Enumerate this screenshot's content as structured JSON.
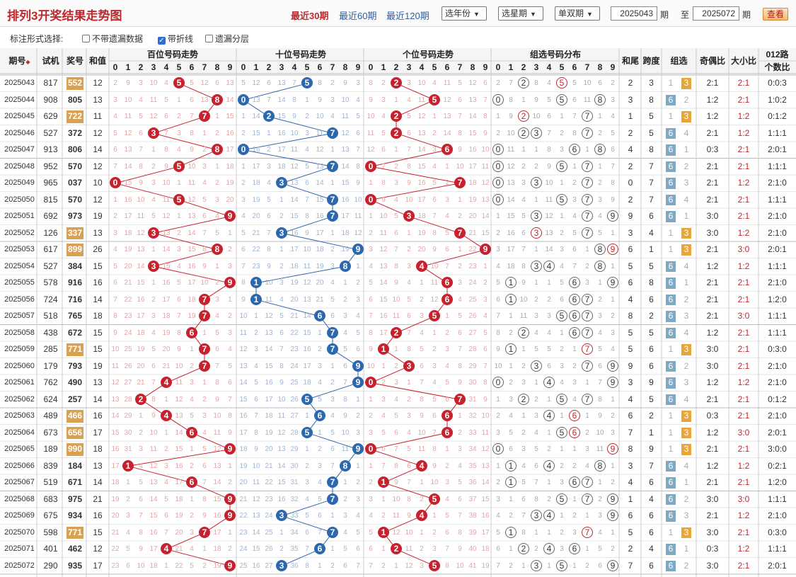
{
  "header": {
    "title": "排列3开奖结果走势图",
    "links": [
      "最近30期",
      "最近60期",
      "最近120期"
    ],
    "year_select": "选年份",
    "week_select": "选星期",
    "oddeven_select": "单双期",
    "start_issue": "2025043",
    "issue_word": "期",
    "to_word": "至",
    "end_issue": "2025072",
    "query": "查看"
  },
  "options": {
    "label": "标注形式选择:",
    "items": [
      {
        "label": "不带遗漏数据",
        "checked": false
      },
      {
        "label": "带折线",
        "checked": true
      },
      {
        "label": "遗漏分层",
        "checked": false
      }
    ]
  },
  "columns": {
    "issue": "期号",
    "sort_icon": "◆",
    "test": "试机",
    "prize": "奖号",
    "sum": "和值",
    "hundreds": "百位号码走势",
    "tens": "十位号码走势",
    "units": "个位号码走势",
    "group": "组选号码分布",
    "tail": "和尾",
    "span": "跨度",
    "gtype": "组选",
    "oe": "奇偶比",
    "bs": "大小比",
    "r012": "012路",
    "r012b": "个数比",
    "digits": [
      "0",
      "1",
      "2",
      "3",
      "4",
      "5",
      "6",
      "7",
      "8",
      "9"
    ]
  },
  "rows": [
    {
      "i": "2025043",
      "t": "817",
      "n": "552",
      "s": "12",
      "r": "0:0:3"
    },
    {
      "i": "2025044",
      "t": "908",
      "n": "805",
      "s": "13",
      "r": "1:0:2"
    },
    {
      "i": "2025045",
      "t": "629",
      "n": "722",
      "s": "11",
      "r": "0:1:2"
    },
    {
      "i": "2025046",
      "t": "527",
      "n": "372",
      "s": "12",
      "r": "1:1:1"
    },
    {
      "i": "2025047",
      "t": "913",
      "n": "806",
      "s": "14",
      "r": "2:0:1"
    },
    {
      "i": "2025048",
      "t": "952",
      "n": "570",
      "s": "12",
      "r": "1:1:1"
    },
    {
      "i": "2025049",
      "t": "965",
      "n": "037",
      "s": "10",
      "r": "2:1:0"
    },
    {
      "i": "2025050",
      "t": "815",
      "n": "570",
      "s": "12",
      "r": "1:1:1"
    },
    {
      "i": "2025051",
      "t": "692",
      "n": "973",
      "s": "19",
      "r": "2:1:0"
    },
    {
      "i": "2025052",
      "t": "126",
      "n": "337",
      "s": "13",
      "r": "2:1:0"
    },
    {
      "i": "2025053",
      "t": "617",
      "n": "899",
      "s": "26",
      "r": "2:0:1"
    },
    {
      "i": "2025054",
      "t": "527",
      "n": "384",
      "s": "15",
      "r": "1:1:1"
    },
    {
      "i": "2025055",
      "t": "578",
      "n": "916",
      "s": "16",
      "r": "2:1:0"
    },
    {
      "i": "2025056",
      "t": "724",
      "n": "716",
      "s": "14",
      "r": "1:2:0"
    },
    {
      "i": "2025057",
      "t": "518",
      "n": "765",
      "s": "18",
      "r": "1:1:1"
    },
    {
      "i": "2025058",
      "t": "438",
      "n": "672",
      "s": "15",
      "r": "1:1:1"
    },
    {
      "i": "2025059",
      "t": "285",
      "n": "771",
      "s": "15",
      "r": "0:3:0"
    },
    {
      "i": "2025060",
      "t": "179",
      "n": "793",
      "s": "19",
      "r": "2:1:0"
    },
    {
      "i": "2025061",
      "t": "762",
      "n": "490",
      "s": "13",
      "r": "2:1:0"
    },
    {
      "i": "2025062",
      "t": "624",
      "n": "257",
      "s": "14",
      "r": "0:1:2"
    },
    {
      "i": "2025063",
      "t": "489",
      "n": "466",
      "s": "16",
      "r": "2:1:0"
    },
    {
      "i": "2025064",
      "t": "673",
      "n": "656",
      "s": "17",
      "r": "2:0:1"
    },
    {
      "i": "2025065",
      "t": "189",
      "n": "990",
      "s": "18",
      "r": "3:0:0"
    },
    {
      "i": "2025066",
      "t": "839",
      "n": "184",
      "s": "13",
      "r": "0:2:1"
    },
    {
      "i": "2025067",
      "t": "519",
      "n": "671",
      "s": "14",
      "r": "1:2:0"
    },
    {
      "i": "2025068",
      "t": "683",
      "n": "975",
      "s": "21",
      "r": "1:1:1"
    },
    {
      "i": "2025069",
      "t": "675",
      "n": "934",
      "s": "16",
      "r": "2:1:0"
    },
    {
      "i": "2025070",
      "t": "598",
      "n": "771",
      "s": "15",
      "r": "0:3:0"
    },
    {
      "i": "2025071",
      "t": "401",
      "n": "462",
      "s": "12",
      "r": "1:1:1"
    },
    {
      "i": "2025072",
      "t": "290",
      "n": "935",
      "s": "17",
      "r": "2:0:1"
    }
  ]
}
